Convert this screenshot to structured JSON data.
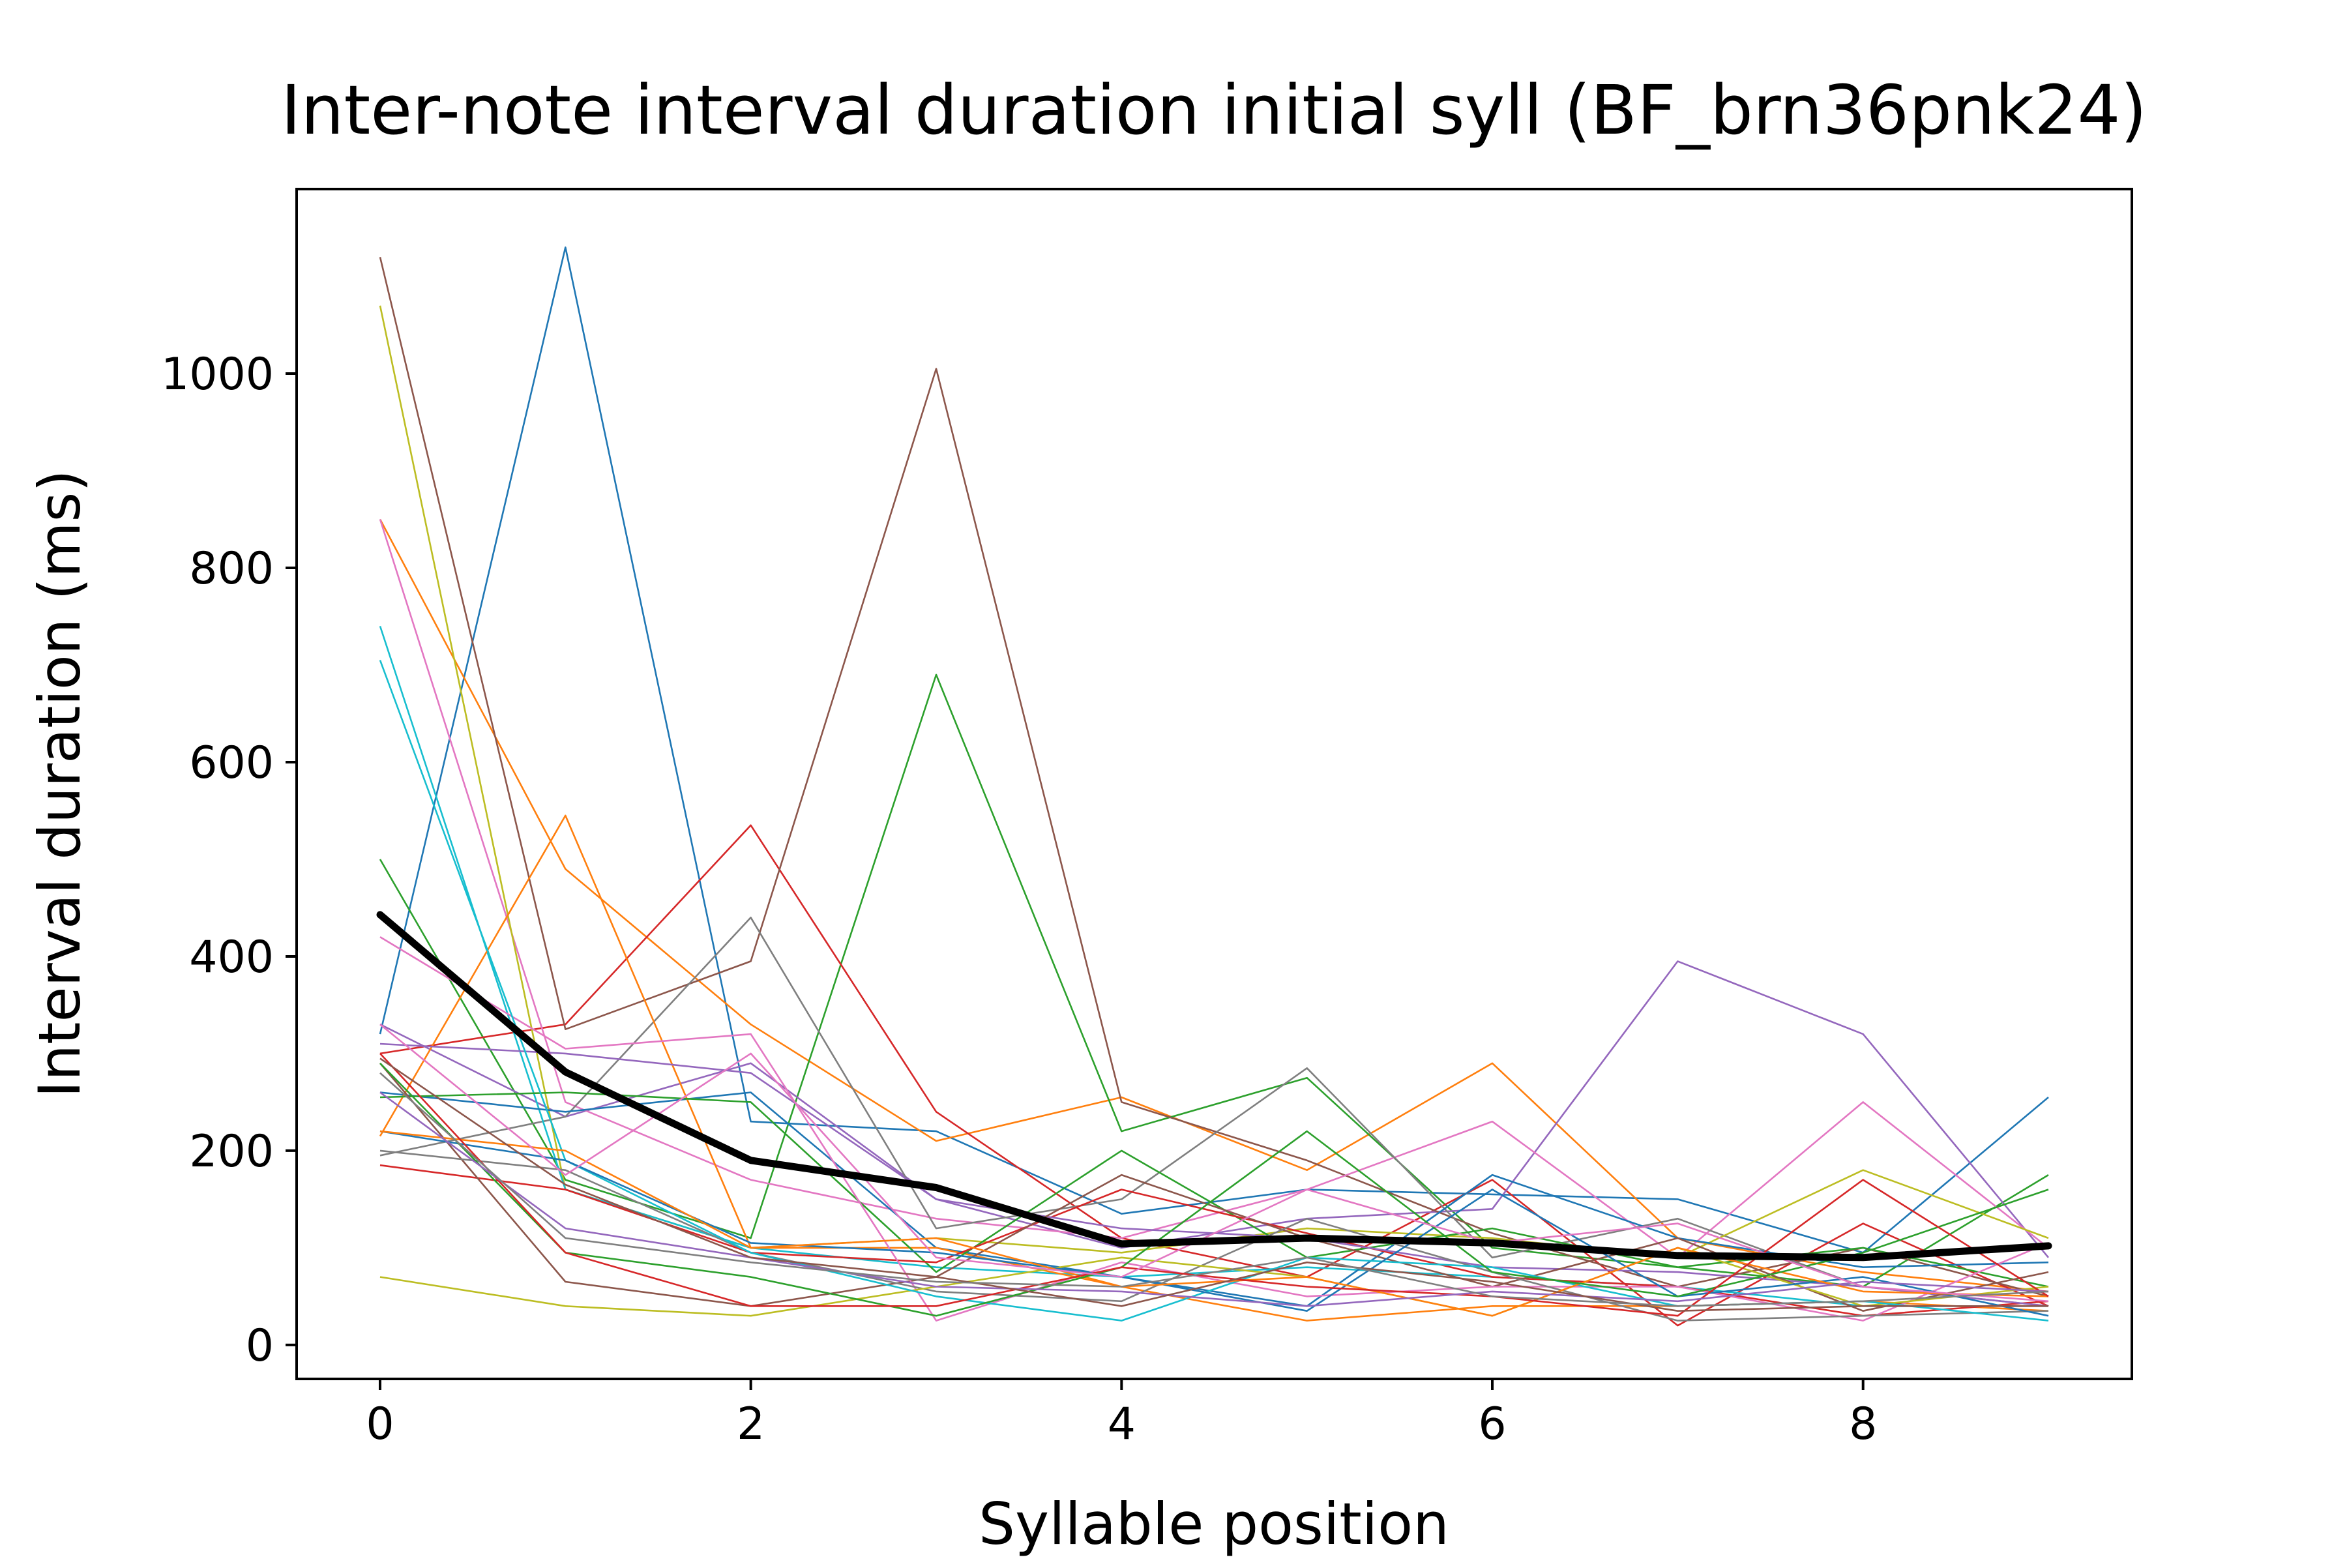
{
  "chart_data": {
    "type": "line",
    "title": "Inter-note interval duration initial syll (BF_brn36pnk24)",
    "xlabel": "Syllable position",
    "ylabel": "Interval duration (ms)",
    "xlim": [
      -0.45,
      9.45
    ],
    "ylim": [
      -35,
      1190
    ],
    "xticks": [
      0,
      2,
      4,
      6,
      8
    ],
    "yticks": [
      0,
      200,
      400,
      600,
      800,
      1000
    ],
    "x": [
      0,
      1,
      2,
      3,
      4,
      5,
      6,
      7,
      8,
      9
    ],
    "grid": false,
    "legend": "none",
    "mean_series": {
      "values": [
        443,
        281,
        190,
        162,
        104,
        110,
        105,
        92,
        90,
        102
      ],
      "color": "#000000"
    },
    "series": [
      {
        "color": "#1f77b4",
        "values": [
          320,
          1130,
          230,
          220,
          135,
          160,
          155,
          150,
          95,
          255
        ]
      },
      {
        "color": "#ff7f0e",
        "values": [
          850,
          490,
          330,
          210,
          255,
          180,
          290,
          110,
          75,
          55
        ]
      },
      {
        "color": "#2ca02c",
        "values": [
          500,
          170,
          110,
          690,
          220,
          275,
          100,
          80,
          60,
          175
        ]
      },
      {
        "color": "#d62728",
        "values": [
          300,
          330,
          535,
          240,
          110,
          70,
          170,
          20,
          125,
          40
        ]
      },
      {
        "color": "#9467bd",
        "values": [
          330,
          235,
          290,
          150,
          100,
          130,
          140,
          395,
          320,
          90
        ]
      },
      {
        "color": "#8c564b",
        "values": [
          1120,
          325,
          395,
          1005,
          250,
          190,
          115,
          60,
          100,
          50
        ]
      },
      {
        "color": "#e377c2",
        "values": [
          850,
          250,
          170,
          130,
          110,
          160,
          230,
          90,
          250,
          100
        ]
      },
      {
        "color": "#7f7f7f",
        "values": [
          195,
          235,
          440,
          120,
          150,
          285,
          90,
          130,
          60,
          40
        ]
      },
      {
        "color": "#bcbd22",
        "values": [
          1070,
          160,
          100,
          110,
          95,
          120,
          110,
          90,
          180,
          110
        ]
      },
      {
        "color": "#17becf",
        "values": [
          740,
          160,
          100,
          80,
          70,
          80,
          70,
          60,
          40,
          40
        ]
      },
      {
        "color": "#1f77b4",
        "values": [
          260,
          240,
          260,
          100,
          70,
          40,
          175,
          110,
          80,
          85
        ]
      },
      {
        "color": "#ff7f0e",
        "values": [
          215,
          545,
          100,
          100,
          60,
          25,
          40,
          40,
          45,
          35
        ]
      },
      {
        "color": "#2ca02c",
        "values": [
          255,
          260,
          250,
          75,
          200,
          90,
          120,
          80,
          100,
          60
        ]
      },
      {
        "color": "#d62728",
        "values": [
          185,
          160,
          95,
          85,
          160,
          115,
          70,
          60,
          30,
          45
        ]
      },
      {
        "color": "#9467bd",
        "values": [
          310,
          300,
          280,
          150,
          120,
          110,
          80,
          75,
          60,
          40
        ]
      },
      {
        "color": "#8c564b",
        "values": [
          290,
          65,
          40,
          70,
          175,
          110,
          60,
          110,
          35,
          75
        ]
      },
      {
        "color": "#e377c2",
        "values": [
          420,
          305,
          320,
          25,
          85,
          50,
          60,
          60,
          25,
          105
        ]
      },
      {
        "color": "#7f7f7f",
        "values": [
          200,
          180,
          95,
          55,
          45,
          130,
          75,
          25,
          30,
          35
        ]
      },
      {
        "color": "#bcbd22",
        "values": [
          70,
          40,
          30,
          60,
          90,
          70,
          30,
          100,
          40,
          60
        ]
      },
      {
        "color": "#17becf",
        "values": [
          705,
          190,
          95,
          50,
          25,
          90,
          80,
          40,
          45,
          25
        ]
      },
      {
        "color": "#1f77b4",
        "values": [
          220,
          190,
          105,
          95,
          70,
          35,
          160,
          50,
          70,
          30
        ]
      },
      {
        "color": "#ff7f0e",
        "values": [
          220,
          200,
          100,
          110,
          60,
          70,
          30,
          100,
          55,
          50
        ]
      },
      {
        "color": "#2ca02c",
        "values": [
          290,
          95,
          70,
          30,
          80,
          220,
          75,
          50,
          95,
          160
        ]
      },
      {
        "color": "#d62728",
        "values": [
          300,
          95,
          40,
          40,
          80,
          60,
          50,
          30,
          170,
          50
        ]
      },
      {
        "color": "#9467bd",
        "values": [
          260,
          120,
          90,
          60,
          55,
          40,
          55,
          45,
          65,
          55
        ]
      },
      {
        "color": "#8c564b",
        "values": [
          295,
          165,
          90,
          70,
          40,
          85,
          65,
          35,
          40,
          40
        ]
      },
      {
        "color": "#e377c2",
        "values": [
          330,
          175,
          300,
          90,
          70,
          160,
          105,
          125,
          60,
          45
        ]
      },
      {
        "color": "#7f7f7f",
        "values": [
          280,
          110,
          85,
          65,
          60,
          90,
          50,
          40,
          45,
          55
        ]
      }
    ]
  }
}
